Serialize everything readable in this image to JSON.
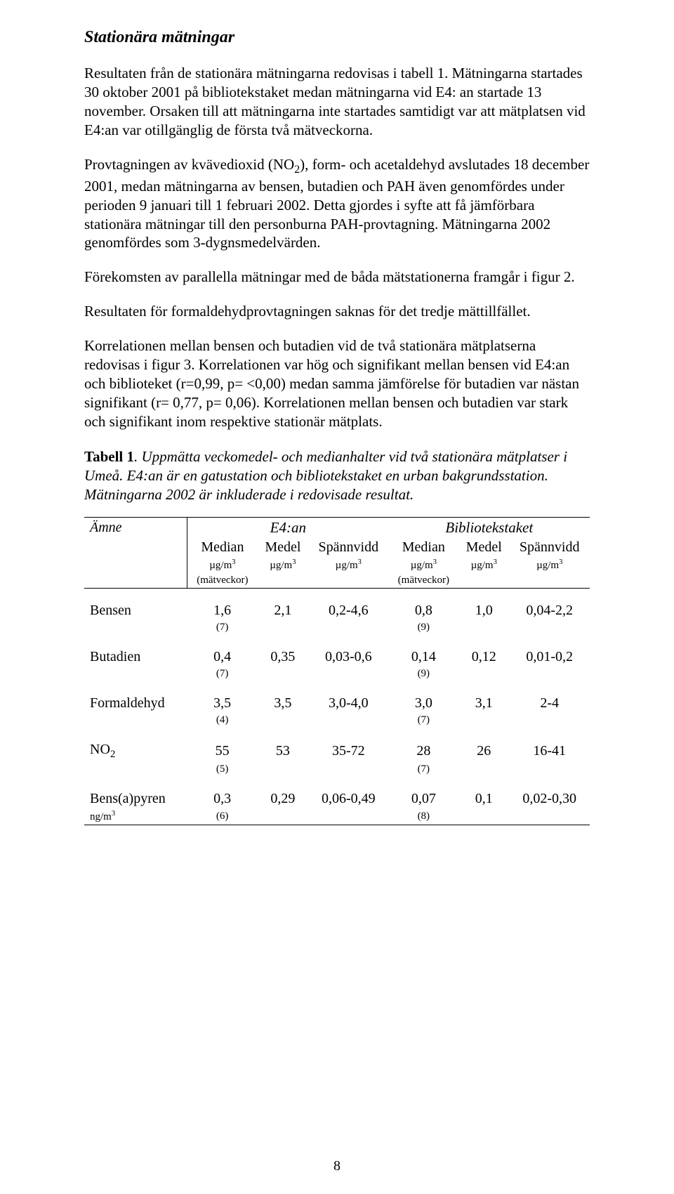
{
  "title": "Stationära mätningar",
  "paragraphs": {
    "p1": "Resultaten från de stationära mätningarna redovisas i tabell 1. Mätningarna startades 30 oktober 2001 på bibliotekstaket medan mätningarna vid E4: an startade 13 november. Orsaken till att mätningarna inte startades samtidigt var att mätplatsen vid E4:an var otillgänglig de första två mätveckorna.",
    "p2_a": "Provtagningen av kvävedioxid (NO",
    "p2_b": "), form- och acetaldehyd avslutades 18 december 2001, medan mätningarna av bensen, butadien och PAH även genomfördes under perioden 9 januari till 1 februari 2002. Detta gjordes i syfte att få jämförbara stationära mätningar till den personburna PAH-provtagning. Mätningarna 2002 genomfördes som 3-dygnsmedelvärden.",
    "p3": "Förekomsten av parallella mätningar med de båda mätstationerna framgår i figur 2.",
    "p4": "Resultaten för formaldehydprovtagningen saknas för det tredje mättillfället.",
    "p5": "Korrelationen mellan bensen och butadien vid de två stationära mätplatserna redovisas i figur 3. Korrelationen var hög och signifikant mellan bensen vid E4:an och biblioteket (r=0,99, p= <0,00) medan samma jämförelse för butadien var nästan signifikant (r= 0,77, p= 0,06). Korrelationen mellan bensen och butadien var stark och signifikant inom respektive stationär mätplats."
  },
  "caption": {
    "lead": "Tabell 1",
    "rest": ". Uppmätta veckomedel- och medianhalter vid två stationära mätplatser i Umeå. E4:an är en gatustation och bibliotekstaket en urban bakgrundsstation. Mätningarna 2002 är inkluderade i redovisade resultat."
  },
  "table": {
    "col_substance": "Ämne",
    "group_e4": "E4:an",
    "group_bib": "Bibliotekstaket",
    "h_median": "Median",
    "h_medel": "Medel",
    "h_span": "Spännvidd",
    "unit_ug": "µg/m",
    "unit_ng": "ng/m",
    "unit_exp": "3",
    "weeks_label": "(mätveckor)",
    "rows": [
      {
        "name": "Bensen",
        "e_med": "1,6",
        "e_w": "(7)",
        "e_mean": "2,1",
        "e_span": "0,2-4,6",
        "b_med": "0,8",
        "b_w": "(9)",
        "b_mean": "1,0",
        "b_span": "0,04-2,2"
      },
      {
        "name": "Butadien",
        "e_med": "0,4",
        "e_w": "(7)",
        "e_mean": "0,35",
        "e_span": "0,03-0,6",
        "b_med": "0,14",
        "b_w": "(9)",
        "b_mean": "0,12",
        "b_span": "0,01-0,2"
      },
      {
        "name": "Formaldehyd",
        "e_med": "3,5",
        "e_w": "(4)",
        "e_mean": "3,5",
        "e_span": "3,0-4,0",
        "b_med": "3,0",
        "b_w": "(7)",
        "b_mean": "3,1",
        "b_span": "2-4"
      },
      {
        "name": "NO",
        "name_sub": "2",
        "e_med": "55",
        "e_w": "(5)",
        "e_mean": "53",
        "e_span": "35-72",
        "b_med": "28",
        "b_w": "(7)",
        "b_mean": "26",
        "b_span": "16-41"
      },
      {
        "name": "Bens(a)pyren",
        "unit": "ng/m",
        "e_med": "0,3",
        "e_w": "(6)",
        "e_mean": "0,29",
        "e_span": "0,06-0,49",
        "b_med": "0,07",
        "b_w": "(8)",
        "b_mean": "0,1",
        "b_span": "0,02-0,30"
      }
    ]
  },
  "page_number": "8",
  "colors": {
    "text": "#000000",
    "background": "#ffffff",
    "rule": "#000000"
  },
  "typography": {
    "body_font": "Times New Roman",
    "body_size_pt": 12,
    "title_size_pt": 14
  }
}
